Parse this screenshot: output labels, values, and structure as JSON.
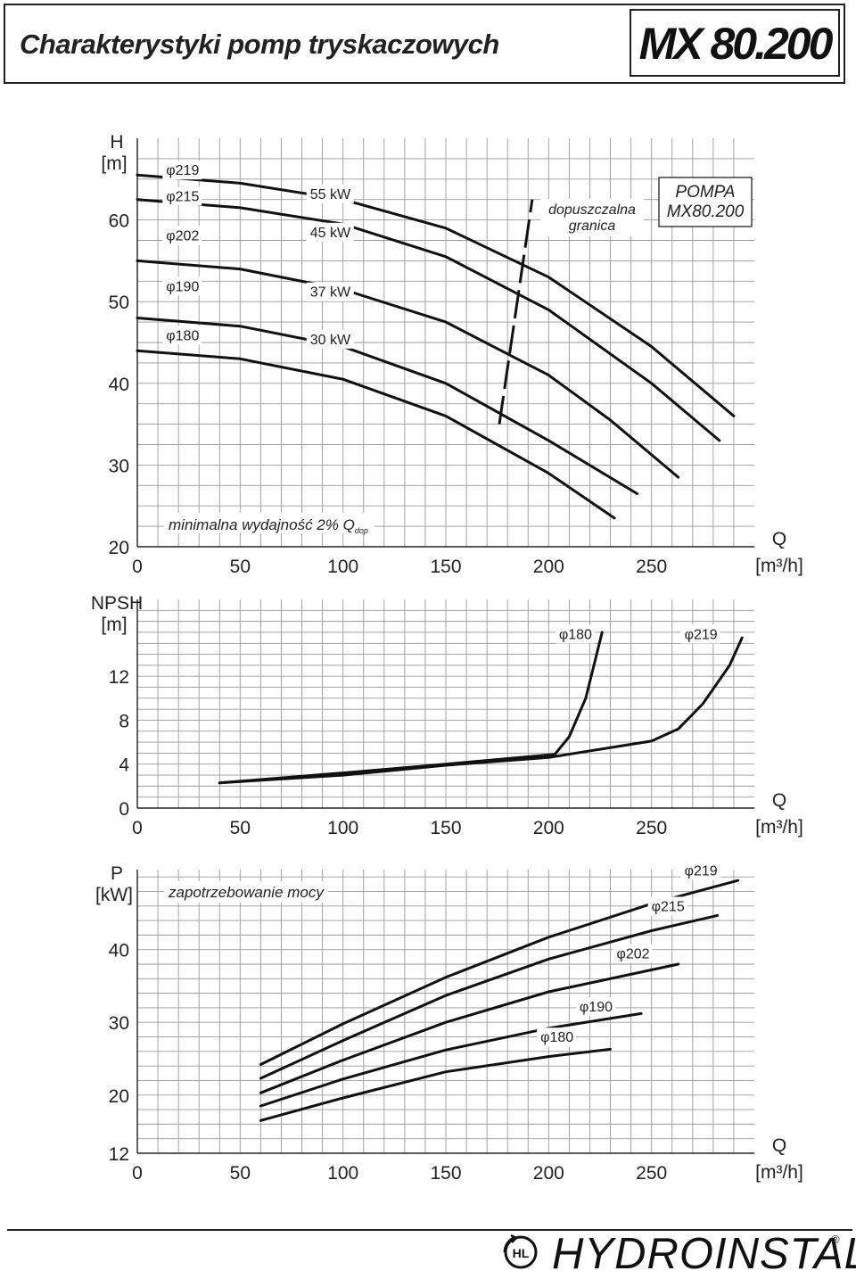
{
  "header": {
    "title": "Charakterystyki pomp tryskaczowych",
    "model": "MX 80.200"
  },
  "brand": {
    "name": "HYDROINSTAL",
    "reg": "®",
    "logo_text": "HL"
  },
  "chart_data": [
    {
      "id": "head",
      "type": "line",
      "ylabel": [
        "H",
        "[m]"
      ],
      "xlabel": [
        "Q",
        "[m³/h]"
      ],
      "xlim": [
        0,
        300
      ],
      "ylim": [
        20,
        70
      ],
      "xticks": [
        0,
        50,
        100,
        150,
        200,
        250
      ],
      "yticks": [
        20,
        30,
        40,
        50,
        60
      ],
      "grid": true,
      "series": [
        {
          "name": "φ219",
          "points": [
            [
              0,
              65.5
            ],
            [
              50,
              64.5
            ],
            [
              100,
              62.5
            ],
            [
              150,
              59
            ],
            [
              200,
              53
            ],
            [
              250,
              44.5
            ],
            [
              290,
              36
            ]
          ]
        },
        {
          "name": "φ215",
          "points": [
            [
              0,
              62.5
            ],
            [
              50,
              61.5
            ],
            [
              100,
              59.5
            ],
            [
              150,
              55.5
            ],
            [
              200,
              49
            ],
            [
              250,
              40
            ],
            [
              283,
              33
            ]
          ]
        },
        {
          "name": "φ202",
          "points": [
            [
              0,
              55
            ],
            [
              50,
              54
            ],
            [
              100,
              51.5
            ],
            [
              150,
              47.5
            ],
            [
              200,
              41
            ],
            [
              230,
              35.5
            ],
            [
              263,
              28.5
            ]
          ]
        },
        {
          "name": "φ190",
          "points": [
            [
              0,
              48
            ],
            [
              50,
              47
            ],
            [
              100,
              44.5
            ],
            [
              150,
              40
            ],
            [
              200,
              33
            ],
            [
              243,
              26.5
            ]
          ]
        },
        {
          "name": "φ180",
          "points": [
            [
              0,
              44
            ],
            [
              50,
              43
            ],
            [
              100,
              40.5
            ],
            [
              150,
              36
            ],
            [
              200,
              29
            ],
            [
              232,
              23.5
            ]
          ]
        }
      ],
      "limit_line": {
        "label": [
          "dopuszczalna",
          "granica"
        ],
        "points": [
          [
            176,
            35
          ],
          [
            192,
            62.5
          ]
        ]
      },
      "labels": [
        {
          "text": "φ219",
          "x": 14,
          "y": 65.5
        },
        {
          "text": "φ215",
          "x": 14,
          "y": 62.3
        },
        {
          "text": "φ202",
          "x": 14,
          "y": 57.5
        },
        {
          "text": "φ190",
          "x": 14,
          "y": 51.3
        },
        {
          "text": "φ180",
          "x": 14,
          "y": 45.3
        },
        {
          "text": "55 kW",
          "x": 84,
          "y": 62.6
        },
        {
          "text": "45 kW",
          "x": 84,
          "y": 57.9
        },
        {
          "text": "37 kW",
          "x": 84,
          "y": 50.6
        },
        {
          "text": "30 kW",
          "x": 84,
          "y": 44.8
        }
      ],
      "annotation": {
        "prefix": "minimalna wydajność 2% Q",
        "sub": "dop"
      },
      "legend_box": [
        "POMPA",
        "MX80.200"
      ]
    },
    {
      "id": "npsh",
      "type": "line",
      "ylabel": [
        "NPSH",
        "[m]"
      ],
      "xlabel": [
        "Q",
        "[m³/h]"
      ],
      "xlim": [
        0,
        300
      ],
      "ylim": [
        0,
        19
      ],
      "xticks": [
        0,
        50,
        100,
        150,
        200,
        250
      ],
      "yticks": [
        0,
        4,
        8,
        12
      ],
      "grid": true,
      "series": [
        {
          "name": "φ180",
          "points": [
            [
              40,
              2.3
            ],
            [
              100,
              3.2
            ],
            [
              150,
              4.0
            ],
            [
              203,
              4.9
            ],
            [
              210,
              6.5
            ],
            [
              218,
              10
            ],
            [
              222,
              13
            ],
            [
              226,
              16
            ]
          ]
        },
        {
          "name": "φ219",
          "points": [
            [
              40,
              2.3
            ],
            [
              100,
              3.0
            ],
            [
              150,
              3.9
            ],
            [
              200,
              4.6
            ],
            [
              250,
              6.1
            ],
            [
              263,
              7.2
            ],
            [
              275,
              9.5
            ],
            [
              288,
              13
            ],
            [
              294,
              15.5
            ]
          ]
        }
      ],
      "labels": [
        {
          "text": "φ180",
          "x": 205,
          "y": 15.4
        },
        {
          "text": "φ219",
          "x": 266,
          "y": 15.4
        }
      ]
    },
    {
      "id": "power",
      "type": "line",
      "ylabel": [
        "P",
        "[kW]"
      ],
      "xlabel": [
        "Q",
        "[m³/h]"
      ],
      "xlim": [
        0,
        300
      ],
      "ylim": [
        12,
        51
      ],
      "xticks": [
        0,
        50,
        100,
        150,
        200,
        250
      ],
      "yticks": [
        12,
        20,
        30,
        40
      ],
      "grid": true,
      "series": [
        {
          "name": "φ219",
          "points": [
            [
              60,
              24.2
            ],
            [
              100,
              29.8
            ],
            [
              150,
              36.2
            ],
            [
              200,
              41.7
            ],
            [
              250,
              46.3
            ],
            [
              292,
              49.5
            ]
          ]
        },
        {
          "name": "φ215",
          "points": [
            [
              60,
              22.3
            ],
            [
              100,
              27.5
            ],
            [
              150,
              33.7
            ],
            [
              200,
              38.7
            ],
            [
              250,
              42.6
            ],
            [
              282,
              44.7
            ]
          ]
        },
        {
          "name": "φ202",
          "points": [
            [
              60,
              20.3
            ],
            [
              100,
              24.8
            ],
            [
              150,
              30.0
            ],
            [
              200,
              34.2
            ],
            [
              263,
              38
            ]
          ]
        },
        {
          "name": "φ190",
          "points": [
            [
              60,
              18.5
            ],
            [
              100,
              22.2
            ],
            [
              150,
              26.2
            ],
            [
              200,
              29.2
            ],
            [
              245,
              31.2
            ]
          ]
        },
        {
          "name": "φ180",
          "points": [
            [
              60,
              16.5
            ],
            [
              100,
              19.6
            ],
            [
              150,
              23.2
            ],
            [
              200,
              25.3
            ],
            [
              230,
              26.3
            ]
          ]
        }
      ],
      "labels": [
        {
          "text": "φ219",
          "x": 266,
          "y": 50.2
        },
        {
          "text": "φ215",
          "x": 250,
          "y": 45.3
        },
        {
          "text": "φ202",
          "x": 233,
          "y": 38.8
        },
        {
          "text": "φ190",
          "x": 215,
          "y": 31.5
        },
        {
          "text": "φ180",
          "x": 196,
          "y": 27.3
        }
      ],
      "annotation": {
        "text": "zapotrzebowanie mocy"
      }
    }
  ]
}
